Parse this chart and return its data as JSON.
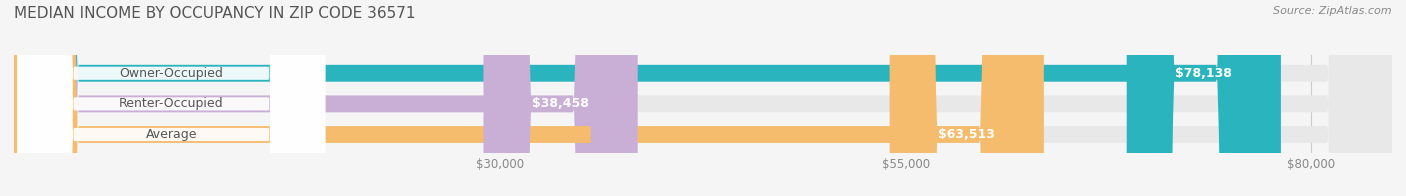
{
  "title": "MEDIAN INCOME BY OCCUPANCY IN ZIP CODE 36571",
  "source": "Source: ZipAtlas.com",
  "categories": [
    "Owner-Occupied",
    "Renter-Occupied",
    "Average"
  ],
  "values": [
    78138,
    38458,
    63513
  ],
  "bar_colors": [
    "#2ab5be",
    "#c9aed6",
    "#f5bc6e"
  ],
  "value_labels": [
    "$78,138",
    "$38,458",
    "$63,513"
  ],
  "x_ticks": [
    30000,
    55000,
    80000
  ],
  "x_tick_labels": [
    "$30,000",
    "$55,000",
    "$80,000"
  ],
  "xlim": [
    0,
    85000
  ],
  "background_color": "#f5f5f5",
  "bar_bg_color": "#e8e8e8",
  "title_fontsize": 11,
  "source_fontsize": 8,
  "label_fontsize": 9,
  "tick_fontsize": 8.5,
  "value_fontsize": 9
}
